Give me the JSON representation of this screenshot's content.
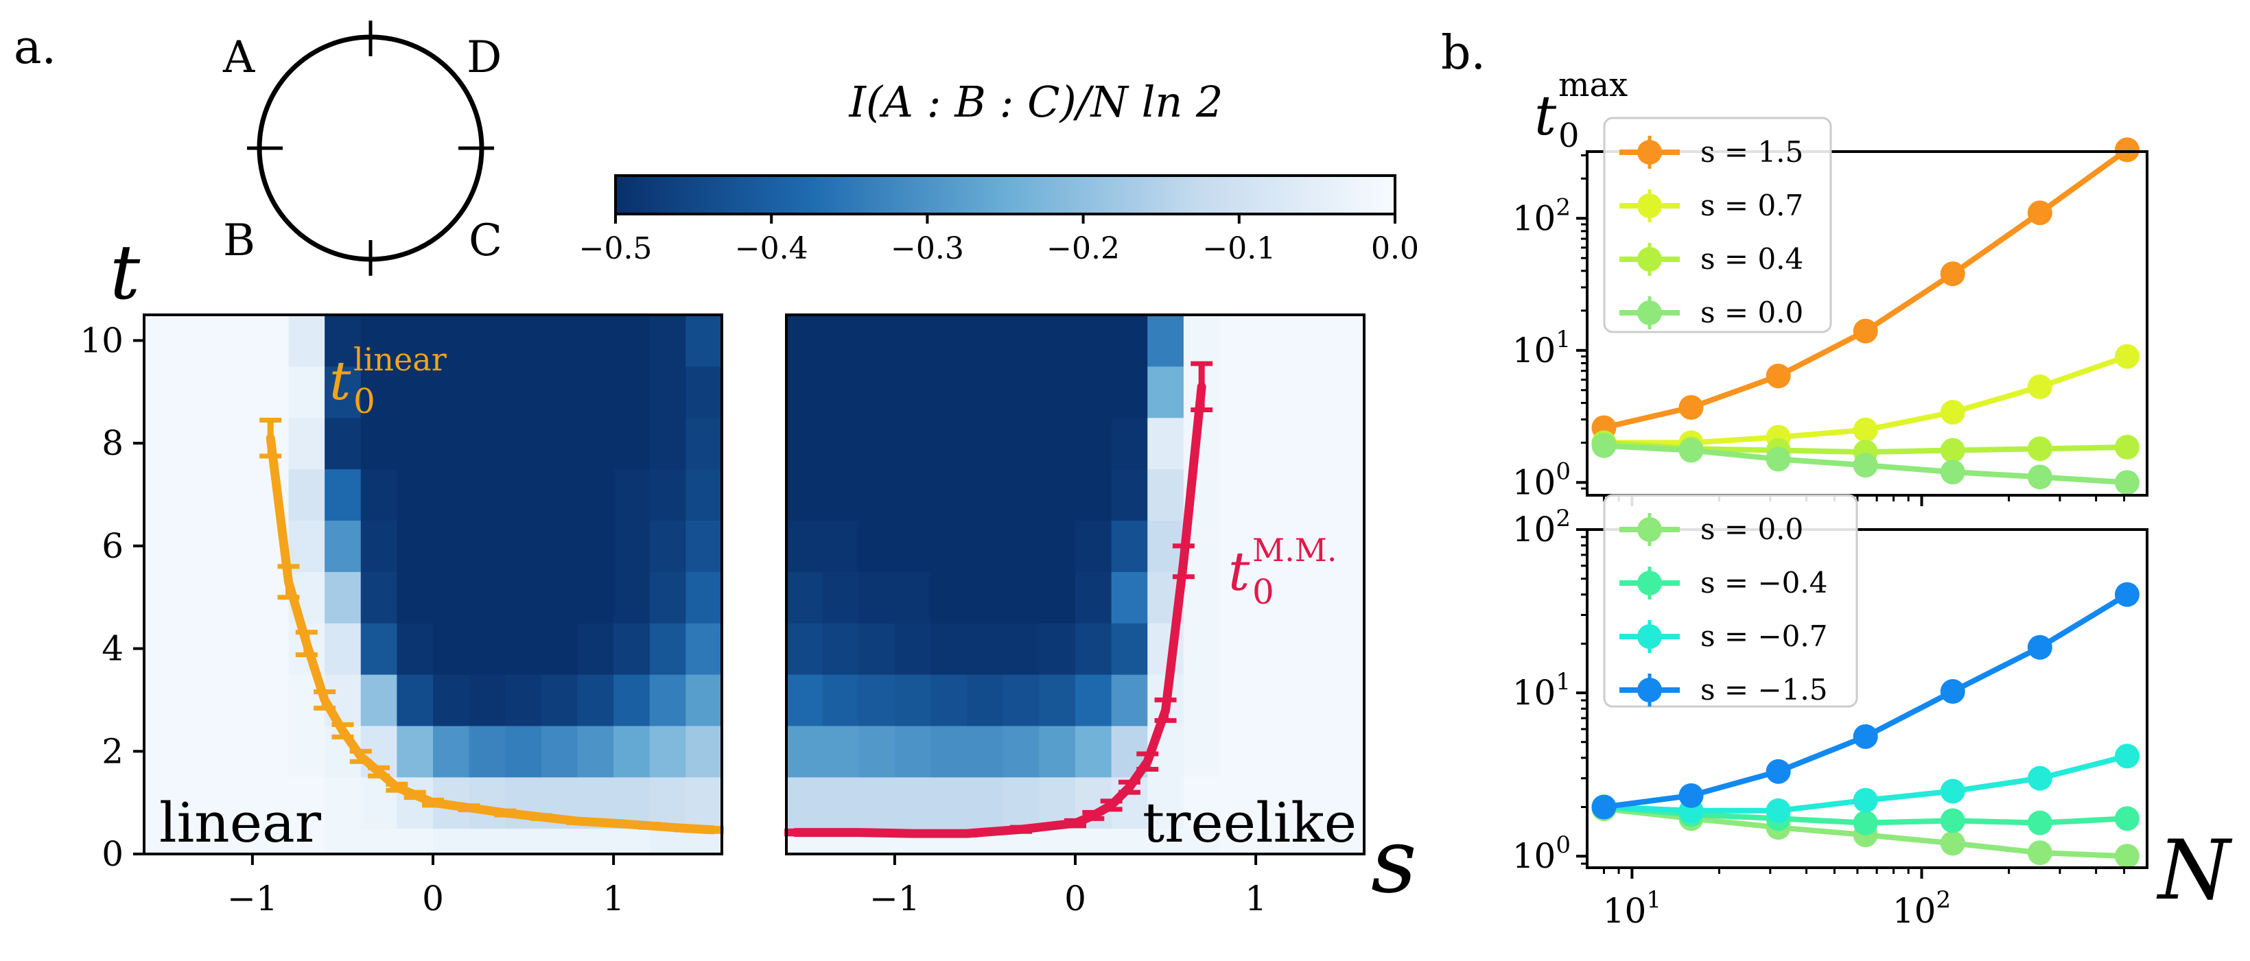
{
  "figure_labels": {
    "panel_a": "a.",
    "panel_b": "b."
  },
  "circle_diagram": {
    "labels": [
      "A",
      "D",
      "B",
      "C"
    ]
  },
  "colorbar": {
    "label": "I(A : B : C)/N ln 2",
    "ticks": [
      "−0.5",
      "−0.4",
      "−0.3",
      "−0.2",
      "−0.1",
      "0.0"
    ],
    "range": [
      -0.5,
      0.0
    ],
    "colors": {
      "low": "#08306b",
      "mid": "#6aaed6",
      "high": "#f7fbff"
    }
  },
  "chart_data": [
    {
      "type": "heatmap",
      "title": "linear",
      "curve_label": "t0^linear",
      "curve_label_base": "t",
      "curve_label_sub": "0",
      "curve_label_sup": "linear",
      "curve_color": "#f5a31a",
      "xlabel": "",
      "ylabel": "t",
      "xlim": [
        -1.6,
        1.6
      ],
      "ylim": [
        0,
        10.5
      ],
      "xticks": [
        "−1",
        "0",
        "1"
      ],
      "yticks": [
        "0",
        "2",
        "4",
        "6",
        "8",
        "10"
      ],
      "grid": {
        "x_cells": 16,
        "y_bands": [
          0.5,
          1.5,
          2.5,
          3.5,
          4.5,
          5.5,
          6.5,
          7.5,
          8.5,
          9.5,
          10.5
        ]
      },
      "values": [
        [
          -0.01,
          -0.01,
          -0.01,
          -0.01,
          -0.01,
          -0.02,
          -0.02,
          -0.02,
          -0.03,
          -0.03,
          -0.03,
          -0.03,
          -0.03,
          -0.03,
          -0.04,
          -0.04
        ],
        [
          -0.01,
          -0.01,
          -0.01,
          -0.01,
          -0.01,
          -0.02,
          -0.03,
          -0.06,
          -0.1,
          -0.11,
          -0.12,
          -0.12,
          -0.12,
          -0.12,
          -0.11,
          -0.1
        ],
        [
          -0.01,
          -0.01,
          -0.01,
          -0.01,
          -0.02,
          -0.03,
          -0.08,
          -0.22,
          -0.3,
          -0.33,
          -0.34,
          -0.32,
          -0.3,
          -0.26,
          -0.22,
          -0.18
        ],
        [
          -0.01,
          -0.01,
          -0.01,
          -0.01,
          -0.02,
          -0.05,
          -0.2,
          -0.44,
          -0.48,
          -0.49,
          -0.48,
          -0.47,
          -0.45,
          -0.4,
          -0.34,
          -0.28
        ],
        [
          -0.01,
          -0.01,
          -0.01,
          -0.01,
          -0.03,
          -0.08,
          -0.42,
          -0.49,
          -0.5,
          -0.5,
          -0.5,
          -0.5,
          -0.49,
          -0.47,
          -0.42,
          -0.35
        ],
        [
          -0.01,
          -0.01,
          -0.01,
          -0.01,
          -0.04,
          -0.17,
          -0.47,
          -0.5,
          -0.5,
          -0.5,
          -0.5,
          -0.5,
          -0.5,
          -0.49,
          -0.46,
          -0.4
        ],
        [
          -0.01,
          -0.01,
          -0.01,
          -0.01,
          -0.07,
          -0.3,
          -0.48,
          -0.5,
          -0.5,
          -0.5,
          -0.5,
          -0.5,
          -0.5,
          -0.49,
          -0.47,
          -0.43
        ],
        [
          -0.01,
          -0.01,
          -0.01,
          -0.01,
          -0.09,
          -0.38,
          -0.49,
          -0.5,
          -0.5,
          -0.5,
          -0.5,
          -0.5,
          -0.5,
          -0.49,
          -0.48,
          -0.45
        ],
        [
          -0.01,
          -0.01,
          -0.01,
          -0.01,
          -0.05,
          -0.48,
          -0.5,
          -0.5,
          -0.5,
          -0.5,
          -0.5,
          -0.5,
          -0.5,
          -0.5,
          -0.49,
          -0.46
        ],
        [
          -0.01,
          -0.01,
          -0.01,
          -0.01,
          -0.03,
          -0.45,
          -0.5,
          -0.5,
          -0.5,
          -0.5,
          -0.5,
          -0.5,
          -0.5,
          -0.5,
          -0.49,
          -0.47
        ],
        [
          -0.01,
          -0.01,
          -0.01,
          -0.01,
          -0.06,
          -0.49,
          -0.5,
          -0.5,
          -0.5,
          -0.5,
          -0.5,
          -0.5,
          -0.5,
          -0.5,
          -0.49,
          -0.44
        ]
      ],
      "series": [
        {
          "name": "t0 linear",
          "x": [
            -0.9,
            -0.8,
            -0.7,
            -0.6,
            -0.5,
            -0.4,
            -0.3,
            -0.2,
            -0.1,
            0.0,
            0.2,
            0.4,
            0.6,
            0.8,
            1.0,
            1.2,
            1.4,
            1.55
          ],
          "y": [
            8.1,
            5.3,
            4.1,
            3.0,
            2.4,
            1.9,
            1.6,
            1.3,
            1.15,
            1.0,
            0.9,
            0.8,
            0.72,
            0.64,
            0.6,
            0.55,
            0.5,
            0.47
          ],
          "err": [
            0.35,
            0.3,
            0.22,
            0.16,
            0.12,
            0.1,
            0.08,
            0.06,
            0.05,
            0.05,
            0.04,
            0.04,
            0.03,
            0.03,
            0.03,
            0.03,
            0.03,
            0.03
          ]
        }
      ]
    },
    {
      "type": "heatmap",
      "title": "treelike",
      "curve_label": "t0^M.M.",
      "curve_label_base": "t",
      "curve_label_sub": "0",
      "curve_label_sup": "M.M.",
      "curve_color": "#e2184a",
      "xlabel": "s",
      "ylabel": "",
      "xlim": [
        -1.6,
        1.6
      ],
      "ylim": [
        0,
        10.5
      ],
      "xticks": [
        "−1",
        "0",
        "1"
      ],
      "grid": {
        "x_cells": 16,
        "y_bands": [
          0.5,
          1.5,
          2.5,
          3.5,
          4.5,
          5.5,
          6.5,
          7.5,
          8.5,
          9.5,
          10.5
        ]
      },
      "values": [
        [
          -0.02,
          -0.02,
          -0.02,
          -0.02,
          -0.02,
          -0.02,
          -0.02,
          -0.02,
          -0.02,
          -0.02,
          -0.02,
          -0.02,
          -0.01,
          -0.01,
          -0.01,
          -0.01
        ],
        [
          -0.13,
          -0.13,
          -0.13,
          -0.13,
          -0.13,
          -0.13,
          -0.12,
          -0.11,
          -0.09,
          -0.07,
          -0.03,
          -0.01,
          -0.01,
          -0.01,
          -0.01,
          -0.01
        ],
        [
          -0.28,
          -0.28,
          -0.29,
          -0.3,
          -0.31,
          -0.31,
          -0.3,
          -0.28,
          -0.24,
          -0.14,
          -0.03,
          -0.02,
          -0.01,
          -0.01,
          -0.01,
          -0.01
        ],
        [
          -0.38,
          -0.4,
          -0.41,
          -0.42,
          -0.43,
          -0.44,
          -0.43,
          -0.42,
          -0.38,
          -0.3,
          -0.04,
          -0.02,
          -0.01,
          -0.01,
          -0.01,
          -0.01
        ],
        [
          -0.45,
          -0.46,
          -0.47,
          -0.48,
          -0.49,
          -0.49,
          -0.49,
          -0.48,
          -0.46,
          -0.42,
          -0.06,
          -0.02,
          -0.01,
          -0.01,
          -0.01,
          -0.01
        ],
        [
          -0.47,
          -0.48,
          -0.49,
          -0.49,
          -0.5,
          -0.5,
          -0.5,
          -0.5,
          -0.48,
          -0.36,
          -0.1,
          -0.02,
          -0.01,
          -0.01,
          -0.01,
          -0.01
        ],
        [
          -0.49,
          -0.49,
          -0.5,
          -0.5,
          -0.5,
          -0.5,
          -0.5,
          -0.5,
          -0.49,
          -0.43,
          -0.12,
          -0.02,
          -0.01,
          -0.01,
          -0.01,
          -0.01
        ],
        [
          -0.5,
          -0.5,
          -0.5,
          -0.5,
          -0.5,
          -0.5,
          -0.5,
          -0.5,
          -0.5,
          -0.48,
          -0.1,
          -0.02,
          -0.01,
          -0.01,
          -0.01,
          -0.01
        ],
        [
          -0.5,
          -0.5,
          -0.5,
          -0.5,
          -0.5,
          -0.5,
          -0.5,
          -0.5,
          -0.5,
          -0.49,
          -0.06,
          -0.02,
          -0.01,
          -0.01,
          -0.01,
          -0.01
        ],
        [
          -0.5,
          -0.5,
          -0.5,
          -0.5,
          -0.5,
          -0.5,
          -0.5,
          -0.5,
          -0.5,
          -0.5,
          -0.24,
          -0.02,
          -0.01,
          -0.01,
          -0.01,
          -0.01
        ],
        [
          -0.5,
          -0.5,
          -0.5,
          -0.5,
          -0.5,
          -0.5,
          -0.5,
          -0.5,
          -0.5,
          -0.5,
          -0.34,
          -0.02,
          -0.01,
          -0.01,
          -0.01,
          -0.01
        ]
      ],
      "series": [
        {
          "name": "t0 M.M.",
          "x": [
            -1.55,
            -1.2,
            -0.9,
            -0.6,
            -0.3,
            0.0,
            0.1,
            0.2,
            0.3,
            0.4,
            0.5,
            0.6,
            0.7
          ],
          "y": [
            0.42,
            0.42,
            0.4,
            0.4,
            0.48,
            0.6,
            0.75,
            0.95,
            1.3,
            1.8,
            2.8,
            5.7,
            9.1
          ],
          "err": [
            0.03,
            0.03,
            0.03,
            0.03,
            0.04,
            0.05,
            0.06,
            0.08,
            0.1,
            0.15,
            0.2,
            0.3,
            0.45
          ]
        }
      ]
    },
    {
      "type": "line",
      "scale": "log-log",
      "ylabel": "t0^max",
      "ylabel_base": "t",
      "ylabel_sub": "0",
      "ylabel_sup": "max",
      "xlim": [
        7,
        600
      ],
      "ylim": [
        0.8,
        320
      ],
      "yticks": [
        {
          "value": 1,
          "mantissa": "10",
          "exp": "0"
        },
        {
          "value": 10,
          "mantissa": "10",
          "exp": "1"
        },
        {
          "value": 100,
          "mantissa": "10",
          "exp": "2"
        }
      ],
      "x": [
        8,
        16,
        32,
        64,
        128,
        256,
        512
      ],
      "series": [
        {
          "name": "s = 1.5",
          "color": "#f7931e",
          "values": [
            2.6,
            3.7,
            6.4,
            14,
            38,
            110,
            330
          ]
        },
        {
          "name": "s = 0.7",
          "color": "#dff52a",
          "values": [
            2.0,
            2.0,
            2.2,
            2.5,
            3.4,
            5.3,
            9.0
          ]
        },
        {
          "name": "s = 0.4",
          "color": "#b5f03e",
          "values": [
            2.0,
            1.8,
            1.75,
            1.7,
            1.75,
            1.8,
            1.85
          ]
        },
        {
          "name": "s = 0.0",
          "color": "#8ee87a",
          "values": [
            1.9,
            1.75,
            1.5,
            1.35,
            1.2,
            1.1,
            1.0
          ]
        }
      ]
    },
    {
      "type": "line",
      "scale": "log-log",
      "xlabel": "N",
      "xlim": [
        7,
        600
      ],
      "ylim": [
        0.85,
        100
      ],
      "xticks": [
        {
          "value": 10,
          "mantissa": "10",
          "exp": "1"
        },
        {
          "value": 100,
          "mantissa": "10",
          "exp": "2"
        }
      ],
      "yticks": [
        {
          "value": 1,
          "mantissa": "10",
          "exp": "0"
        },
        {
          "value": 10,
          "mantissa": "10",
          "exp": "1"
        },
        {
          "value": 100,
          "mantissa": "10",
          "exp": "2"
        }
      ],
      "x": [
        8,
        16,
        32,
        64,
        128,
        256,
        512
      ],
      "series": [
        {
          "name": "s = 0.0",
          "color": "#8ee87a",
          "values": [
            1.95,
            1.7,
            1.5,
            1.35,
            1.2,
            1.05,
            1.0
          ]
        },
        {
          "name": "s = −0.4",
          "color": "#3ef0a0",
          "values": [
            2.0,
            1.8,
            1.7,
            1.6,
            1.65,
            1.6,
            1.7
          ]
        },
        {
          "name": "s = −0.7",
          "color": "#22ebd8",
          "values": [
            2.0,
            1.9,
            1.9,
            2.2,
            2.5,
            3.0,
            4.1
          ]
        },
        {
          "name": "s = −1.5",
          "color": "#1288f0",
          "values": [
            2.0,
            2.35,
            3.3,
            5.4,
            10.2,
            19,
            40
          ]
        }
      ]
    }
  ]
}
